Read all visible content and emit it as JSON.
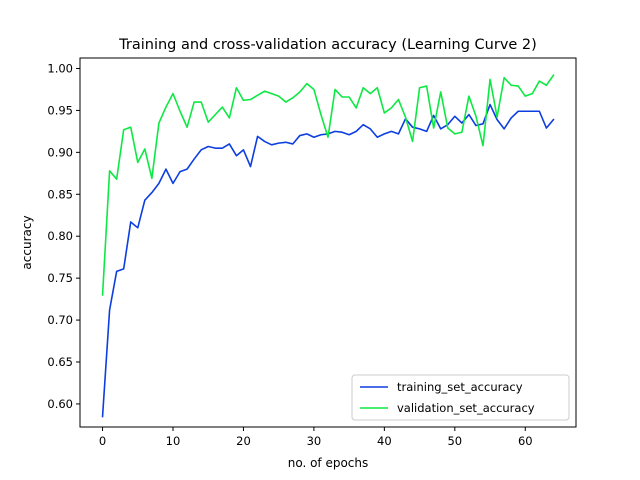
{
  "chart_data": {
    "type": "line",
    "title": "Training and cross-validation accuracy (Learning Curve 2)",
    "xlabel": "no. of epochs",
    "ylabel": "accuracy",
    "xlim": [
      -3.2,
      67.2
    ],
    "ylim": [
      0.5725,
      1.0125
    ],
    "xticks": [
      0,
      10,
      20,
      30,
      40,
      50,
      60
    ],
    "yticks": [
      0.6,
      0.65,
      0.7,
      0.75,
      0.8,
      0.85,
      0.9,
      0.95,
      1.0
    ],
    "ytick_labels": [
      "0.60",
      "0.65",
      "0.70",
      "0.75",
      "0.80",
      "0.85",
      "0.90",
      "0.95",
      "1.00"
    ],
    "grid": false,
    "legend_position": "lower-right",
    "series": [
      {
        "name": "training_set_accuracy",
        "color": "#0d3ee0",
        "values": [
          0.585,
          0.712,
          0.758,
          0.761,
          0.817,
          0.81,
          0.843,
          0.852,
          0.863,
          0.88,
          0.863,
          0.877,
          0.88,
          0.892,
          0.903,
          0.907,
          0.905,
          0.905,
          0.91,
          0.896,
          0.903,
          0.883,
          0.919,
          0.913,
          0.909,
          0.911,
          0.912,
          0.91,
          0.92,
          0.922,
          0.918,
          0.921,
          0.922,
          0.925,
          0.924,
          0.921,
          0.925,
          0.933,
          0.928,
          0.918,
          0.922,
          0.925,
          0.922,
          0.94,
          0.93,
          0.928,
          0.925,
          0.944,
          0.928,
          0.933,
          0.943,
          0.935,
          0.945,
          0.932,
          0.934,
          0.957,
          0.939,
          0.928,
          0.941,
          0.949,
          0.949,
          0.949,
          0.949,
          0.929,
          0.939
        ]
      },
      {
        "name": "validation_set_accuracy",
        "color": "#0ee843",
        "values": [
          0.73,
          0.878,
          0.868,
          0.927,
          0.93,
          0.888,
          0.904,
          0.869,
          0.935,
          0.954,
          0.97,
          0.949,
          0.93,
          0.96,
          0.96,
          0.936,
          0.945,
          0.954,
          0.941,
          0.977,
          0.962,
          0.963,
          0.968,
          0.973,
          0.97,
          0.967,
          0.96,
          0.965,
          0.972,
          0.982,
          0.975,
          0.945,
          0.918,
          0.975,
          0.966,
          0.966,
          0.953,
          0.977,
          0.97,
          0.977,
          0.947,
          0.953,
          0.963,
          0.942,
          0.913,
          0.977,
          0.979,
          0.929,
          0.972,
          0.929,
          0.922,
          0.924,
          0.967,
          0.943,
          0.908,
          0.987,
          0.942,
          0.989,
          0.98,
          0.979,
          0.967,
          0.97,
          0.985,
          0.98,
          0.992
        ]
      }
    ]
  }
}
